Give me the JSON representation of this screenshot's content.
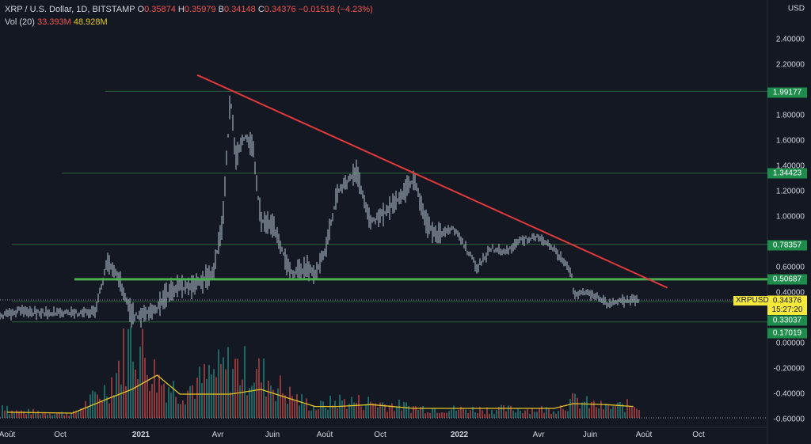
{
  "legend": {
    "symbol": "XRP / U.S. Dollar, 1D, BITSTAMP",
    "open_key": "O",
    "open": "0.35874",
    "high_key": "H",
    "high": "0.35979",
    "low_key": "B",
    "low": "0.34148",
    "close_key": "C",
    "close": "0.34376",
    "change": "−0.01518 (−4.23%)",
    "vol_label": "Vol (20)",
    "vol_value": "33.393M",
    "vol_ma": "48.928M"
  },
  "axis": {
    "currency": "USD",
    "y_ticks": [
      "2.40000",
      "2.20000",
      "1.80000",
      "1.60000",
      "1.40000",
      "1.20000",
      "1.00000",
      "0.60000",
      "0.40000",
      "0.00000",
      "-0.20000",
      "-0.40000",
      "-0.60000"
    ],
    "x_ticks": [
      "Août",
      "Oct",
      "2021",
      "Avr",
      "Juin",
      "Août",
      "Oct",
      "2022",
      "Avr",
      "Juin",
      "Août",
      "Oct"
    ]
  },
  "price_labels": {
    "l1": "1.99177",
    "l2": "1.34423",
    "l3": "0.78357",
    "l4": "0.50687",
    "l5": "0.33037",
    "l6": "0.17019",
    "current": "0.34376",
    "symbol": "XRPUSD",
    "countdown": "15:27:20"
  },
  "colors": {
    "background": "#141823",
    "candle": "#b7c9d6",
    "trendline": "#e0393b",
    "support": "#4caf50",
    "level": "#2c5f3a",
    "vol_up": "#26a69a",
    "vol_down": "#ef5350",
    "vol_ma": "#e5c527",
    "badge_green": "#1e8c4b",
    "badge_yellow": "#f7e93a"
  },
  "chart_data": {
    "type": "line",
    "title": "XRP / U.S. Dollar, 1D, BITSTAMP",
    "x_axis": "date",
    "x_range": [
      "2020-08-01",
      "2022-10-31"
    ],
    "y_range": [
      -0.66,
      2.62
    ],
    "price_series": {
      "name": "XRPUSD",
      "x": [
        "2020-07-20",
        "2020-08-15",
        "2020-09-15",
        "2020-10-15",
        "2020-11-10",
        "2020-11-24",
        "2020-12-05",
        "2020-12-22",
        "2021-01-01",
        "2021-01-20",
        "2021-02-01",
        "2021-02-15",
        "2021-03-01",
        "2021-03-25",
        "2021-04-05",
        "2021-04-14",
        "2021-04-20",
        "2021-05-01",
        "2021-05-10",
        "2021-05-19",
        "2021-06-01",
        "2021-06-22",
        "2021-07-10",
        "2021-07-20",
        "2021-08-01",
        "2021-08-15",
        "2021-09-06",
        "2021-09-22",
        "2021-10-10",
        "2021-10-30",
        "2021-11-10",
        "2021-11-25",
        "2021-12-05",
        "2021-12-27",
        "2022-01-22",
        "2022-02-07",
        "2022-02-24",
        "2022-03-10",
        "2022-03-28",
        "2022-04-20",
        "2022-05-10",
        "2022-05-12",
        "2022-06-01",
        "2022-06-18",
        "2022-07-01",
        "2022-07-20"
      ],
      "y": [
        0.2,
        0.26,
        0.24,
        0.24,
        0.25,
        0.65,
        0.55,
        0.22,
        0.22,
        0.27,
        0.4,
        0.45,
        0.45,
        0.55,
        0.95,
        1.96,
        1.45,
        1.65,
        1.55,
        0.95,
        0.95,
        0.55,
        0.6,
        0.55,
        0.75,
        1.2,
        1.35,
        0.95,
        1.05,
        1.2,
        1.3,
        0.95,
        0.85,
        0.9,
        0.6,
        0.75,
        0.72,
        0.8,
        0.85,
        0.75,
        0.55,
        0.4,
        0.4,
        0.32,
        0.33,
        0.34
      ]
    },
    "volume": {
      "name": "Vol (20)",
      "x": [
        "2020-08-01",
        "2020-10-15",
        "2020-11-24",
        "2020-12-22",
        "2021-01-20",
        "2021-02-15",
        "2021-04-14",
        "2021-05-19",
        "2021-06-22",
        "2021-07-20",
        "2021-08-15",
        "2021-09-22",
        "2021-11-10",
        "2021-12-27",
        "2022-02-07",
        "2022-03-10",
        "2022-04-20",
        "2022-05-12",
        "2022-06-18",
        "2022-07-20"
      ],
      "values": [
        0.08,
        0.05,
        0.35,
        0.95,
        0.45,
        0.3,
        0.6,
        0.5,
        0.25,
        0.12,
        0.2,
        0.18,
        0.12,
        0.1,
        0.1,
        0.1,
        0.1,
        0.2,
        0.12,
        0.15
      ]
    },
    "volume_ma": {
      "name": "48.928M",
      "values": [
        0.06,
        0.05,
        0.2,
        0.3,
        0.45,
        0.25,
        0.25,
        0.3,
        0.2,
        0.12,
        0.12,
        0.14,
        0.1,
        0.1,
        0.1,
        0.1,
        0.1,
        0.15,
        0.14,
        0.12
      ]
    },
    "trendline": {
      "x": [
        "2021-03-07",
        "2022-08-28"
      ],
      "y": [
        2.12,
        0.44
      ]
    },
    "support_level": 0.50687,
    "horizontal_levels": [
      1.99177,
      1.34423,
      0.78357,
      0.33037,
      0.17019
    ],
    "current_price": 0.34376
  }
}
